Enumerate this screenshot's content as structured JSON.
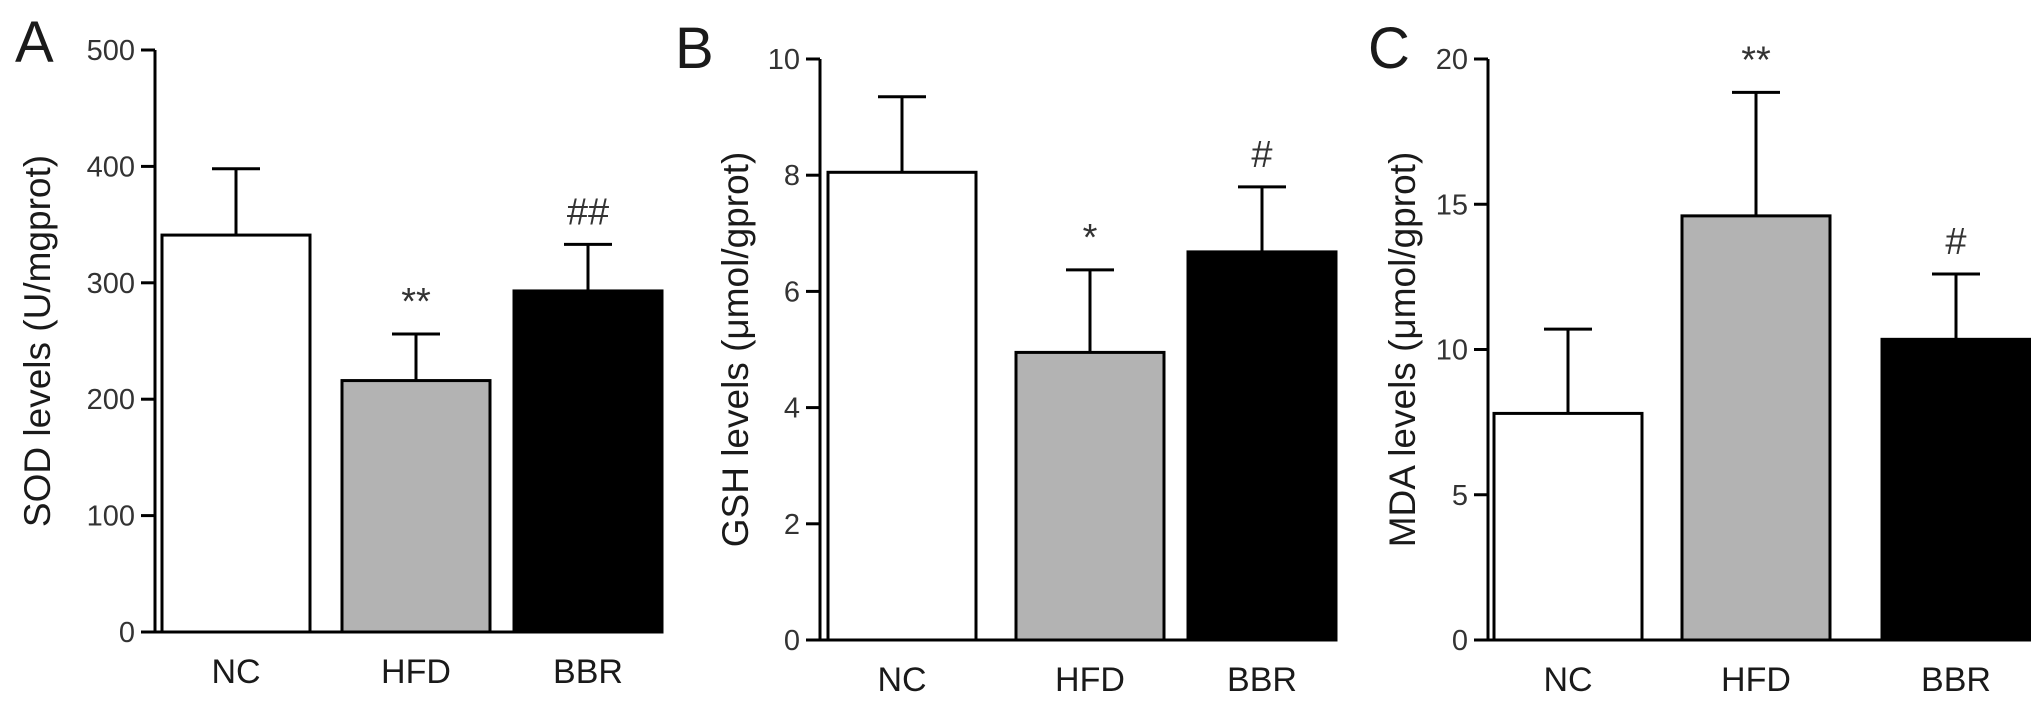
{
  "chart_data": [
    {
      "panel": "A",
      "type": "bar",
      "categories": [
        "NC",
        "HFD",
        "BBR"
      ],
      "values": [
        341,
        216,
        293
      ],
      "errors": [
        57,
        40,
        40
      ],
      "significance": [
        "",
        "**",
        "##"
      ],
      "colors": [
        "#ffffff",
        "#b3b3b3",
        "#000000"
      ],
      "ylabel": "SOD levels (U/mgprot)",
      "xlabel": "",
      "ylim": [
        0,
        500
      ],
      "yticks": [
        "0",
        "100",
        "200",
        "300",
        "400",
        "500"
      ]
    },
    {
      "panel": "B",
      "type": "bar",
      "categories": [
        "NC",
        "HFD",
        "BBR"
      ],
      "values": [
        8.05,
        4.95,
        6.68
      ],
      "errors": [
        1.3,
        1.42,
        1.12
      ],
      "significance": [
        "",
        "*",
        "#"
      ],
      "colors": [
        "#ffffff",
        "#b3b3b3",
        "#000000"
      ],
      "ylabel": "GSH levels (μmol/gprot)",
      "xlabel": "",
      "ylim": [
        0,
        10
      ],
      "yticks": [
        "0",
        "2",
        "4",
        "6",
        "8",
        "10"
      ]
    },
    {
      "panel": "C",
      "type": "bar",
      "categories": [
        "NC",
        "HFD",
        "BBR"
      ],
      "values": [
        7.8,
        14.6,
        10.35
      ],
      "errors": [
        2.9,
        4.25,
        2.25
      ],
      "significance": [
        "",
        "**",
        "#"
      ],
      "colors": [
        "#ffffff",
        "#b3b3b3",
        "#000000"
      ],
      "ylabel": "MDA levels (μmol/gprot)",
      "xlabel": "",
      "ylim": [
        0,
        20
      ],
      "yticks": [
        "0",
        "5",
        "10",
        "15",
        "20"
      ]
    }
  ]
}
